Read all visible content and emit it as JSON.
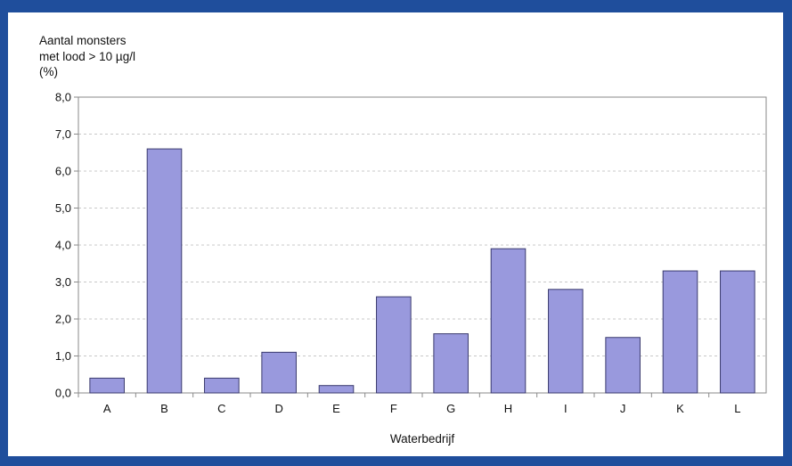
{
  "chart_data": {
    "type": "bar",
    "title": "",
    "ylabel_lines": [
      "Aantal monsters",
      "met lood > 10 µg/l",
      "(%)"
    ],
    "xlabel": "Waterbedrijf",
    "categories": [
      "A",
      "B",
      "C",
      "D",
      "E",
      "F",
      "G",
      "H",
      "I",
      "J",
      "K",
      "L"
    ],
    "values": [
      0.4,
      6.6,
      0.4,
      1.1,
      0.2,
      2.6,
      1.6,
      3.9,
      2.8,
      1.5,
      3.3,
      3.3
    ],
    "ylim": [
      0,
      8
    ],
    "yticks": [
      0,
      1,
      2,
      3,
      4,
      5,
      6,
      7,
      8
    ],
    "ytick_labels": [
      "0,0",
      "1,0",
      "2,0",
      "3,0",
      "4,0",
      "5,0",
      "6,0",
      "7,0",
      "8,0"
    ],
    "grid": true,
    "legend": "none",
    "colors": {
      "bar_fill": "#9999dd",
      "bar_stroke": "#3a3a6e",
      "frame": "#1f4e9c",
      "grid": "#c8c8c8",
      "axis": "#8a8a8a"
    }
  }
}
